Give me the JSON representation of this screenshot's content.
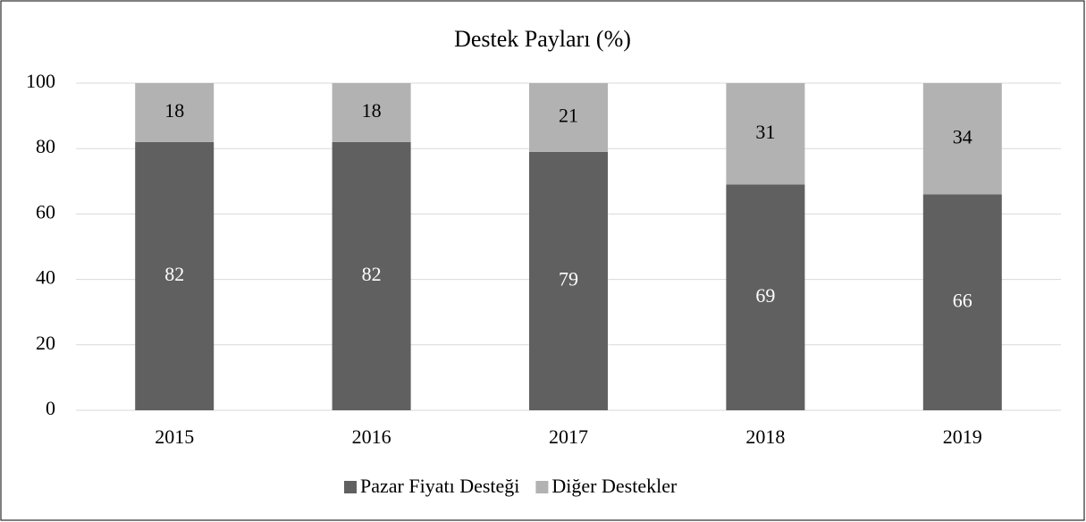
{
  "chart_data": {
    "type": "stacked_bar",
    "title": "Destek Payları (%)",
    "categories": [
      "2015",
      "2016",
      "2017",
      "2018",
      "2019"
    ],
    "series": [
      {
        "name": "Pazar Fiyatı Desteği",
        "color": "#606060",
        "values": [
          82,
          82,
          79,
          69,
          66
        ]
      },
      {
        "name": "Diğer Destekler",
        "color": "#b2b2b2",
        "values": [
          18,
          18,
          21,
          31,
          34
        ]
      }
    ],
    "ylim": [
      0,
      100
    ],
    "yticks": [
      0,
      20,
      40,
      60,
      80,
      100
    ],
    "grid": true,
    "legend": "bottom"
  }
}
